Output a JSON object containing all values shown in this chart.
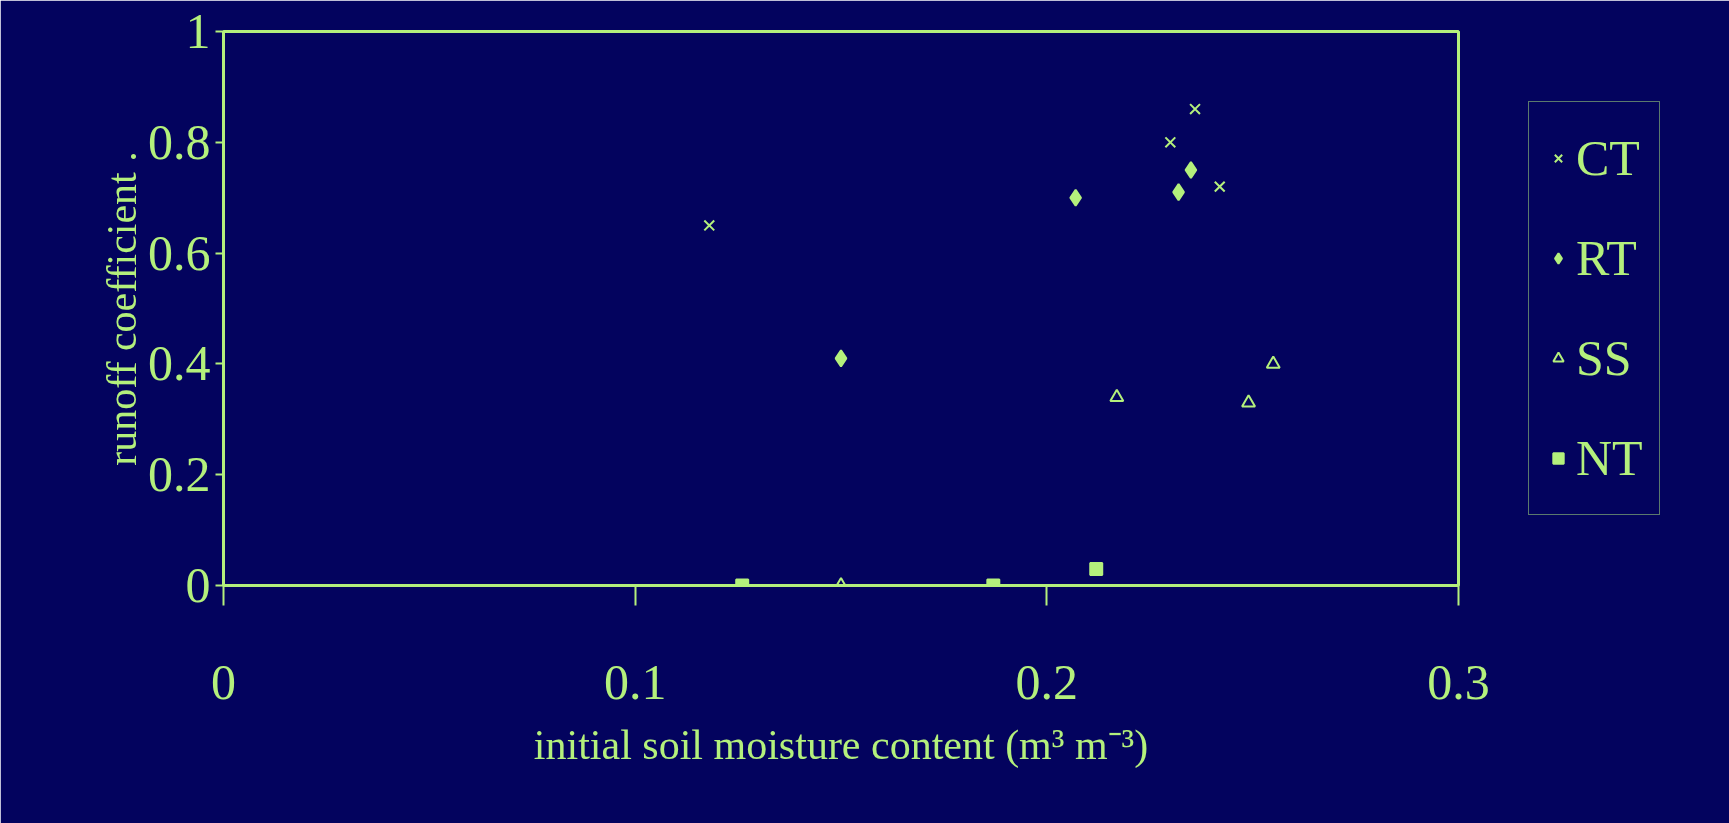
{
  "chart_data": {
    "type": "scatter",
    "xlabel": "initial soil moisture content (m³ m⁻³)",
    "ylabel": "runoff coefficient .",
    "xlim": [
      0,
      0.3
    ],
    "xticks": [
      0,
      0.1,
      0.2,
      0.3
    ],
    "ylim": [
      0,
      1
    ],
    "yticks": [
      0,
      0.2,
      0.4,
      0.6,
      0.8,
      1
    ],
    "grid": false,
    "legend": "right",
    "series": [
      {
        "name": "CT",
        "color": "#b4f07c",
        "marker": "cross",
        "x": [
          0.118,
          0.23,
          0.236,
          0.242
        ],
        "values": [
          0.65,
          0.8,
          0.86,
          0.72
        ]
      },
      {
        "name": "RT",
        "color": "#b4f07c",
        "marker": "diamond",
        "x": [
          0.15,
          0.207,
          0.232,
          0.235
        ],
        "values": [
          0.41,
          0.7,
          0.71,
          0.75
        ]
      },
      {
        "name": "SS",
        "color": "#b4f07c",
        "marker": "triangle",
        "x": [
          0.15,
          0.217,
          0.249,
          0.255
        ],
        "values": [
          0.0,
          0.34,
          0.33,
          0.4
        ]
      },
      {
        "name": "NT",
        "color": "#b4f07c",
        "marker": "square",
        "x": [
          0.126,
          0.187,
          0.212
        ],
        "values": [
          0.0,
          0.0,
          0.03
        ]
      }
    ]
  }
}
